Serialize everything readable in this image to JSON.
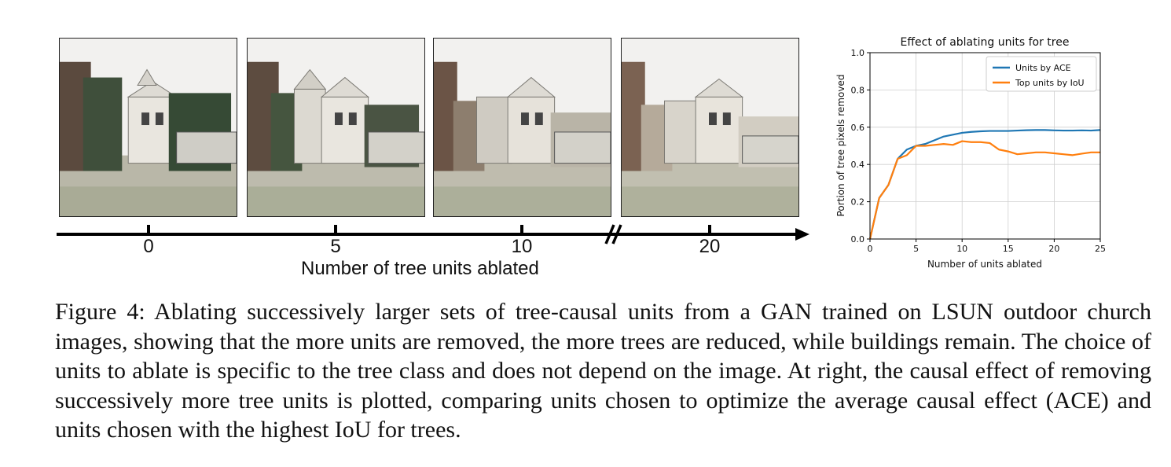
{
  "strip": {
    "axis_labels": [
      "0",
      "5",
      "10",
      "20"
    ],
    "axis_title": "Number of tree units ablated"
  },
  "chart_data": {
    "type": "line",
    "title": "Effect of ablating units for tree",
    "xlabel": "Number of units ablated",
    "ylabel": "Portion of tree pixels removed",
    "xlim": [
      0,
      25
    ],
    "ylim": [
      0.0,
      1.0
    ],
    "xticks": [
      "0",
      "5",
      "10",
      "15",
      "20",
      "25"
    ],
    "yticks": [
      "0.0",
      "0.2",
      "0.4",
      "0.6",
      "0.8",
      "1.0"
    ],
    "grid": true,
    "legend_position": "upper-right",
    "x": [
      0,
      1,
      2,
      3,
      4,
      5,
      6,
      7,
      8,
      9,
      10,
      11,
      12,
      13,
      14,
      15,
      16,
      17,
      18,
      19,
      20,
      21,
      22,
      23,
      24,
      25
    ],
    "series": [
      {
        "name": "Units by ACE",
        "color": "#1f77b4",
        "values": [
          0.0,
          0.22,
          0.29,
          0.43,
          0.48,
          0.5,
          0.51,
          0.53,
          0.55,
          0.56,
          0.57,
          0.575,
          0.578,
          0.58,
          0.58,
          0.58,
          0.582,
          0.584,
          0.585,
          0.585,
          0.583,
          0.582,
          0.582,
          0.583,
          0.582,
          0.585
        ]
      },
      {
        "name": "Top units by IoU",
        "color": "#ff7f0e",
        "values": [
          0.0,
          0.22,
          0.29,
          0.43,
          0.45,
          0.5,
          0.5,
          0.505,
          0.51,
          0.505,
          0.525,
          0.52,
          0.52,
          0.515,
          0.48,
          0.47,
          0.455,
          0.46,
          0.465,
          0.465,
          0.46,
          0.455,
          0.45,
          0.458,
          0.465,
          0.465
        ]
      }
    ]
  },
  "caption": {
    "text": "Figure 4: Ablating successively larger sets of tree-causal units from a GAN trained on LSUN outdoor church images, showing that the more units are removed, the more trees are reduced, while buildings remain. The choice of units to ablate is specific to the tree class and does not depend on the image. At right, the causal effect of removing successively more tree units is plotted, comparing units chosen to optimize the average causal effect (ACE) and units chosen with the highest IoU for trees."
  }
}
